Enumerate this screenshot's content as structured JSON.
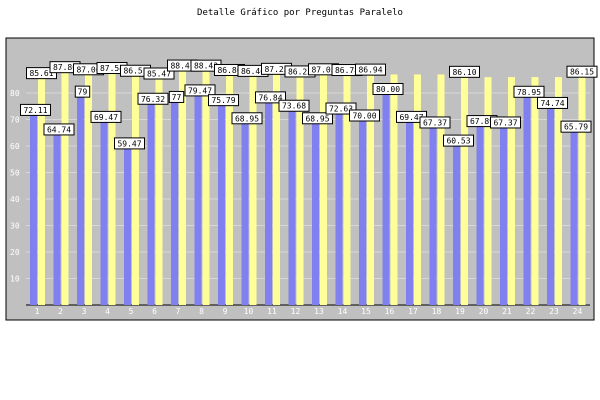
{
  "chart_data": {
    "type": "bar",
    "title": "Detalle Gráfico por Preguntas Paralelo",
    "xlabel": "",
    "ylabel": "",
    "ylim": [
      0,
      100
    ],
    "yticks": [
      10,
      20,
      30,
      40,
      50,
      60,
      70,
      80
    ],
    "grid": true,
    "legend": "none",
    "categories": [
      "1",
      "2",
      "3",
      "4",
      "5",
      "6",
      "7",
      "8",
      "9",
      "10",
      "11",
      "12",
      "13",
      "14",
      "15",
      "16",
      "17",
      "18",
      "19",
      "20",
      "21",
      "22",
      "23",
      "24"
    ],
    "series": [
      {
        "color": "#8080f0",
        "values": [
          72.11,
          64.74,
          79,
          69.47,
          59.47,
          76.32,
          77,
          79.47,
          75.79,
          68.95,
          76.84,
          73.68,
          68.95,
          72.63,
          70.0,
          80.0,
          69.47,
          67.37,
          60.53,
          67.89,
          67.37,
          78.95,
          74.74,
          65.79
        ],
        "labels": [
          "72.11",
          "64.74",
          "79",
          "69.47",
          "59.47",
          "76.32",
          "77",
          "79.47",
          "75.79",
          "68.95",
          "76.84",
          "73.68",
          "68.95",
          "72.63",
          "70.00",
          "80.00",
          "69.47",
          "67.37",
          "60.53",
          "67.89",
          "67.37",
          "78.95",
          "74.74",
          "65.79"
        ]
      },
      {
        "color": "#ffff99",
        "values": [
          85.61,
          87.86,
          87.06,
          87.54,
          86.51,
          85.47,
          88.47,
          88.43,
          86.8,
          86.46,
          87.23,
          86.25,
          87.05,
          86.78,
          86.94,
          87.0,
          87.0,
          87.0,
          86.1,
          86.0,
          86.0,
          86.0,
          86.0,
          86.15
        ],
        "labels": [
          "85.61",
          "87.86",
          "87.06",
          "87.54",
          "86.51",
          "85.47",
          "88.47",
          "88.43",
          "86.80",
          "86.46",
          "87.23",
          "86.25",
          "87.05",
          "86.78",
          "86.94",
          "",
          "",
          "",
          "86.10",
          "",
          "",
          "",
          "",
          "86.15"
        ]
      }
    ]
  },
  "colors": {
    "plot_bg": "#c0c0c0",
    "outline": "#000000"
  }
}
